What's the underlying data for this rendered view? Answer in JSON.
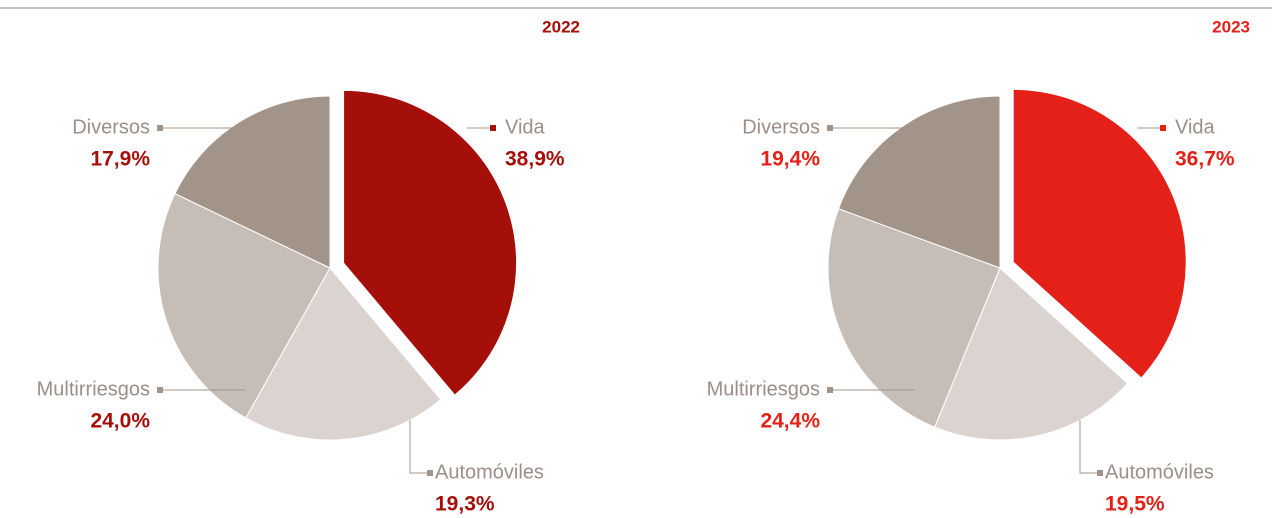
{
  "chart_data": [
    {
      "type": "pie",
      "title": "2022",
      "categories": [
        "Vida",
        "Automóviles",
        "Multirriesgos",
        "Diversos"
      ],
      "values": [
        38.9,
        19.3,
        24.0,
        17.9
      ],
      "value_labels": [
        "38,9%",
        "19,3%",
        "24,0%",
        "17,9%"
      ],
      "colors": [
        "#a50f0a",
        "#dbd3cf",
        "#c6bdb7",
        "#a39489"
      ]
    },
    {
      "type": "pie",
      "title": "2023",
      "categories": [
        "Vida",
        "Automóviles",
        "Multirriesgos",
        "Diversos"
      ],
      "values": [
        36.7,
        19.5,
        24.4,
        19.4
      ],
      "value_labels": [
        "36,7%",
        "19,5%",
        "24,4%",
        "19,4%"
      ],
      "colors": [
        "#e32119",
        "#dbd3cf",
        "#c6bdb7",
        "#a39489"
      ]
    }
  ]
}
